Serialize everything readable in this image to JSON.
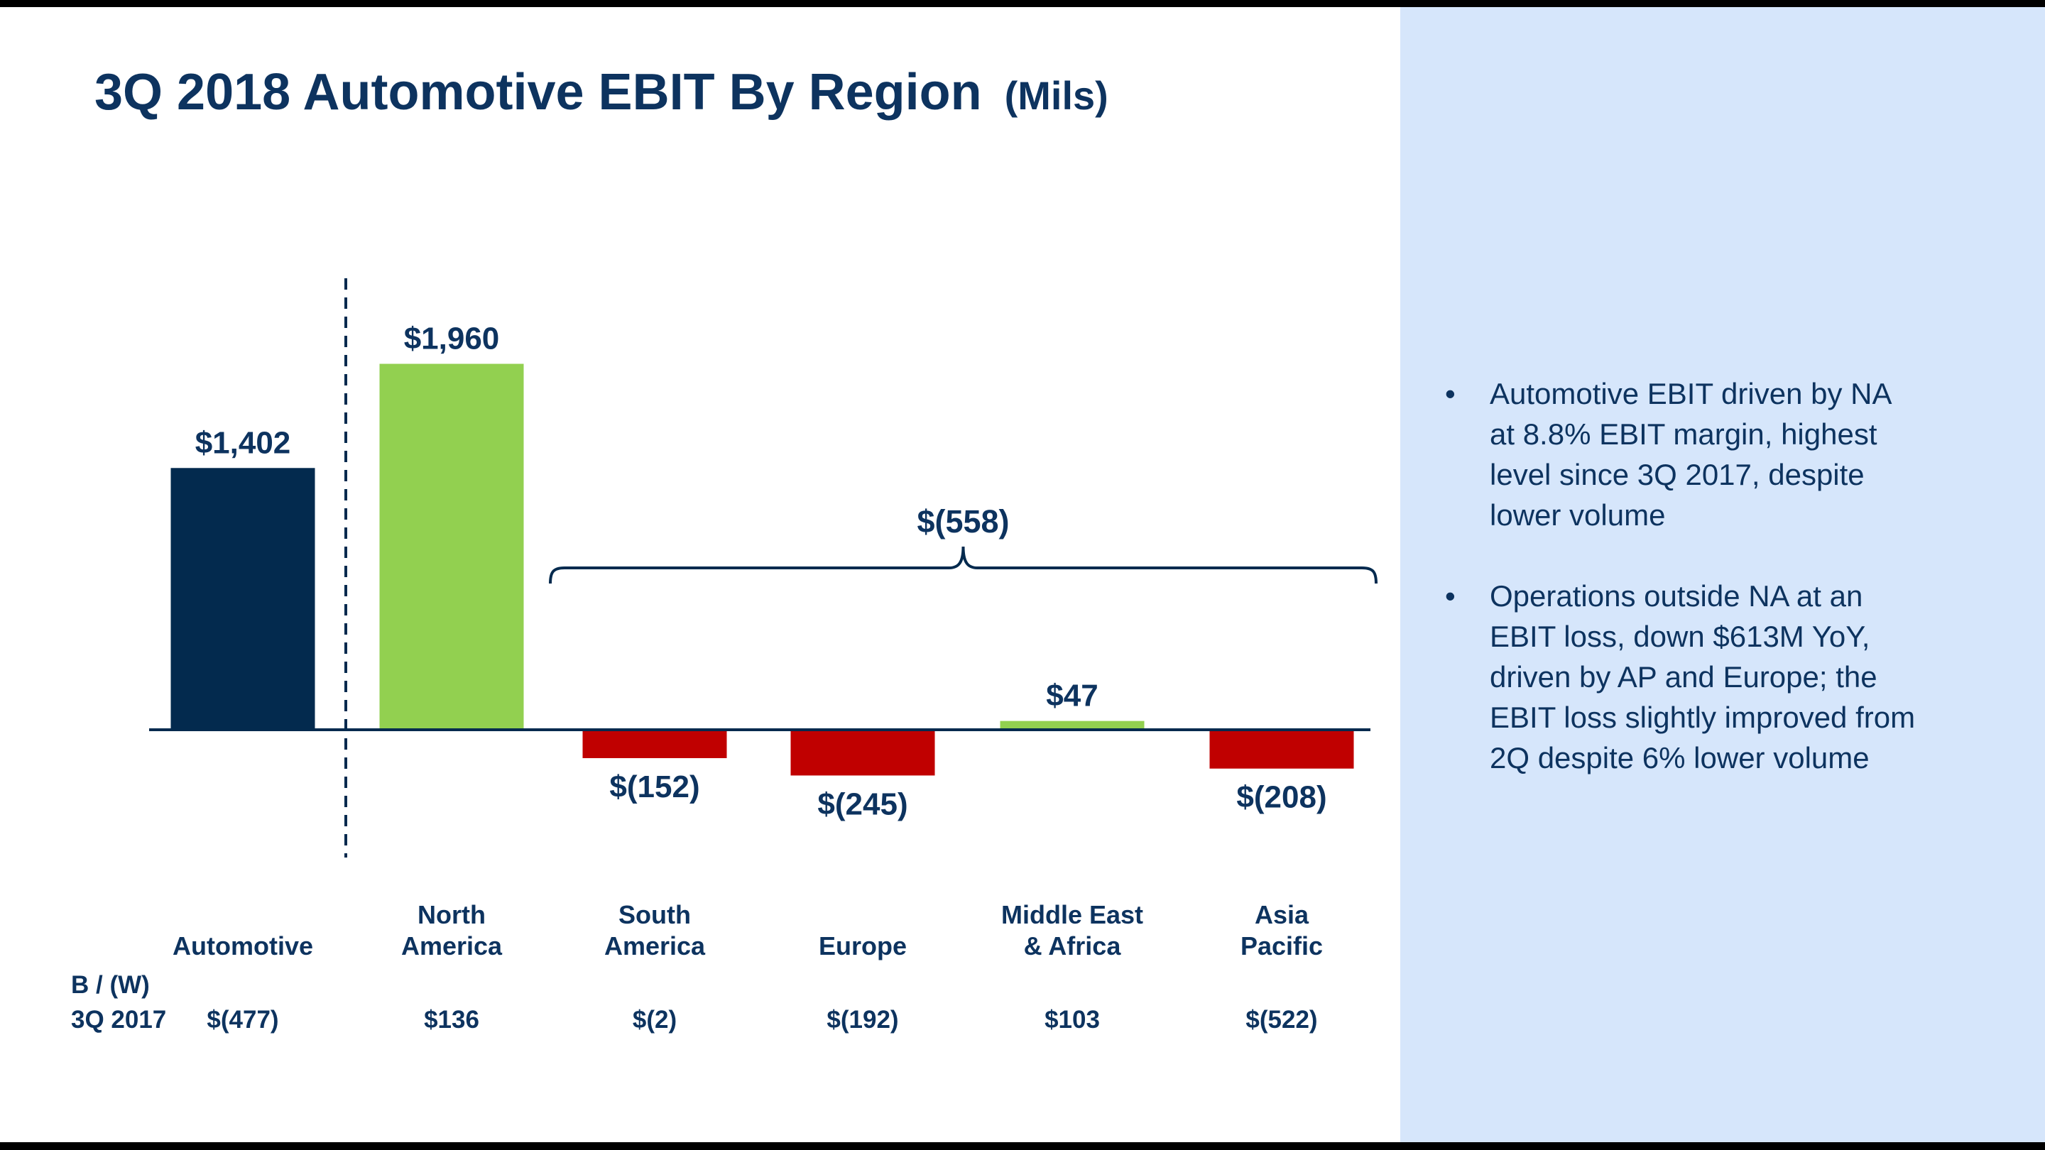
{
  "slide": {
    "title": {
      "main": "3Q 2018 Automotive EBIT By Region",
      "suffix": "(Mils)"
    }
  },
  "chart_data": {
    "type": "bar",
    "title": "3Q 2018 Automotive EBIT By Region (Mils)",
    "unit": "$ millions",
    "categories": [
      "Automotive",
      "North America",
      "South America",
      "Europe",
      "Middle East & Africa",
      "Asia Pacific"
    ],
    "category_label_lines": [
      [
        "Automotive"
      ],
      [
        "North",
        "America"
      ],
      [
        "South",
        "America"
      ],
      [
        "Europe"
      ],
      [
        "Middle East",
        "& Africa"
      ],
      [
        "Asia",
        "Pacific"
      ]
    ],
    "values": [
      1402,
      1960,
      -152,
      -245,
      47,
      -208
    ],
    "value_labels": [
      "$1,402",
      "$1,960",
      "$(152)",
      "$(245)",
      "$47",
      "$(208)"
    ],
    "bar_colors": [
      "#032a4e",
      "#92d050",
      "#c00000",
      "#c00000",
      "#92d050",
      "#c00000"
    ],
    "colors": {
      "navy": "#032a4e",
      "green": "#92d050",
      "red": "#c00000",
      "text": "#0d335f"
    },
    "separator": {
      "type": "dashed-vertical-line",
      "after_index": 0
    },
    "brace": {
      "label": "$(558)",
      "start_index": 2,
      "end_index": 5
    },
    "comparison_row": {
      "header_line1": "B / (W)",
      "header_line2": "3Q 2017",
      "values": [
        "$(477)",
        "$136",
        "$(2)",
        "$(192)",
        "$103",
        "$(522)"
      ]
    },
    "ylim": [
      -300,
      2100
    ],
    "grid": false,
    "legend": false
  },
  "sidebar": {
    "background": "#d6e6fb",
    "marker": "•",
    "bullets": [
      {
        "lines": [
          "Automotive EBIT driven by NA",
          "at 8.8% EBIT margin, highest",
          "level since 3Q 2017, despite",
          "lower volume"
        ]
      },
      {
        "lines": [
          "Operations outside NA at an",
          "EBIT loss, down $613M YoY,",
          "driven by AP and Europe; the",
          "EBIT loss slightly improved from",
          "2Q despite 6% lower volume"
        ]
      }
    ]
  }
}
